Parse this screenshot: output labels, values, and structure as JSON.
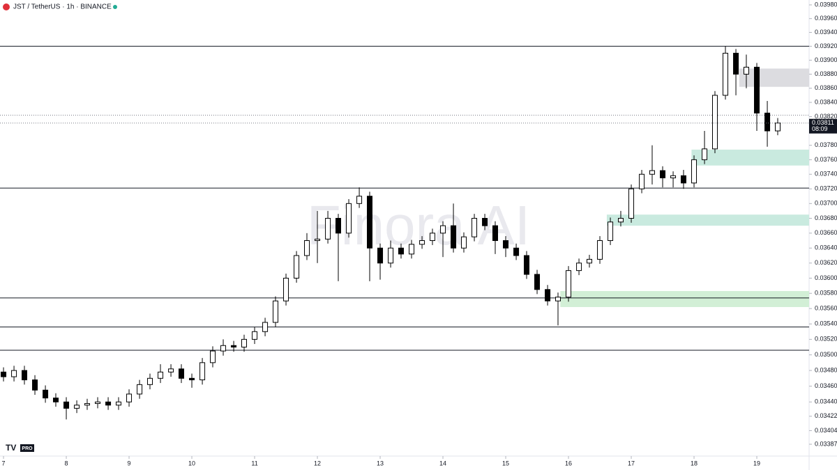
{
  "chart_data": {
    "type": "candlestick",
    "title": "JST / TetherUS · 1h · BINANCE",
    "watermark": "Finora AI",
    "badge": "PRO",
    "log_scale": true,
    "up_color": "#ffffff",
    "down_color": "#000000",
    "x": [
      7,
      7.167,
      7.333,
      7.5,
      7.667,
      7.833,
      8,
      8.167,
      8.333,
      8.5,
      8.667,
      8.833,
      9,
      9.167,
      9.333,
      9.5,
      9.667,
      9.833,
      10,
      10.167,
      10.333,
      10.5,
      10.667,
      10.833,
      11,
      11.167,
      11.333,
      11.5,
      11.667,
      11.833,
      12,
      12.167,
      12.333,
      12.5,
      12.667,
      12.833,
      13,
      13.167,
      13.333,
      13.5,
      13.667,
      13.833,
      14,
      14.167,
      14.333,
      14.5,
      14.667,
      14.833,
      15,
      15.167,
      15.333,
      15.5,
      15.667,
      15.833,
      16,
      16.167,
      16.333,
      16.5,
      16.667,
      16.833,
      17,
      17.167,
      17.333,
      17.5,
      17.667,
      17.833,
      18,
      18.167,
      18.333,
      18.5,
      18.667,
      18.833,
      19,
      19.167,
      19.333
    ],
    "open": [
      0.03478,
      0.03472,
      0.0348,
      0.03468,
      0.03455,
      0.03445,
      0.0344,
      0.03432,
      0.03436,
      0.03438,
      0.0344,
      0.03436,
      0.0344,
      0.0345,
      0.03462,
      0.0347,
      0.03478,
      0.03482,
      0.0347,
      0.03468,
      0.0349,
      0.03505,
      0.03512,
      0.0351,
      0.0352,
      0.0353,
      0.03542,
      0.0357,
      0.036,
      0.0363,
      0.0365,
      0.03652,
      0.0368,
      0.0366,
      0.037,
      0.0371,
      0.0364,
      0.0362,
      0.0364,
      0.03632,
      0.03645,
      0.0365,
      0.0366,
      0.0367,
      0.0364,
      0.03655,
      0.0368,
      0.0367,
      0.0365,
      0.0364,
      0.0363,
      0.03605,
      0.03585,
      0.0357,
      0.03575,
      0.0361,
      0.0362,
      0.03625,
      0.0365,
      0.03675,
      0.0368,
      0.0372,
      0.0374,
      0.03745,
      0.03735,
      0.03738,
      0.03728,
      0.0376,
      0.03775,
      0.0385,
      0.0391,
      0.0388,
      0.0389,
      0.03825,
      0.038
    ],
    "high": [
      0.03484,
      0.03486,
      0.03486,
      0.03474,
      0.03461,
      0.03451,
      0.03446,
      0.03442,
      0.03444,
      0.03446,
      0.03446,
      0.03446,
      0.03456,
      0.03468,
      0.03476,
      0.03488,
      0.03488,
      0.03488,
      0.03476,
      0.03496,
      0.03511,
      0.0352,
      0.03518,
      0.03526,
      0.03536,
      0.03548,
      0.03576,
      0.03606,
      0.03636,
      0.0366,
      0.0369,
      0.0369,
      0.03686,
      0.03706,
      0.03722,
      0.03716,
      0.03646,
      0.0365,
      0.03646,
      0.03651,
      0.03656,
      0.03666,
      0.03676,
      0.037,
      0.03661,
      0.03686,
      0.03686,
      0.03676,
      0.03656,
      0.03646,
      0.03636,
      0.03611,
      0.03591,
      0.03581,
      0.03616,
      0.03626,
      0.03631,
      0.03656,
      0.03681,
      0.0369,
      0.03726,
      0.03746,
      0.0378,
      0.03751,
      0.03744,
      0.03746,
      0.03766,
      0.038,
      0.03856,
      0.0392,
      0.03916,
      0.03908,
      0.03896,
      0.03842,
      0.03818
    ],
    "low": [
      0.03466,
      0.03466,
      0.03462,
      0.03449,
      0.03439,
      0.03434,
      0.03418,
      0.03426,
      0.0343,
      0.03432,
      0.0343,
      0.0343,
      0.03434,
      0.03444,
      0.03456,
      0.03464,
      0.03472,
      0.03464,
      0.03458,
      0.03462,
      0.03484,
      0.03499,
      0.03504,
      0.03504,
      0.03514,
      0.03524,
      0.03536,
      0.03564,
      0.03594,
      0.03624,
      0.0362,
      0.03646,
      0.03596,
      0.03654,
      0.03694,
      0.03596,
      0.03598,
      0.03614,
      0.03626,
      0.03626,
      0.03639,
      0.03644,
      0.03628,
      0.03634,
      0.03634,
      0.03649,
      0.03664,
      0.03632,
      0.03628,
      0.03624,
      0.03599,
      0.03579,
      0.03564,
      0.03538,
      0.03569,
      0.03604,
      0.03614,
      0.03619,
      0.03644,
      0.03669,
      0.03674,
      0.03714,
      0.03726,
      0.03722,
      0.03722,
      0.0372,
      0.03722,
      0.03754,
      0.03769,
      0.03844,
      0.0385,
      0.0386,
      0.038,
      0.03778,
      0.03794
    ],
    "close": [
      0.03472,
      0.0348,
      0.03468,
      0.03455,
      0.03445,
      0.0344,
      0.03432,
      0.03436,
      0.03438,
      0.0344,
      0.03436,
      0.0344,
      0.0345,
      0.03462,
      0.0347,
      0.03478,
      0.03482,
      0.0347,
      0.03468,
      0.0349,
      0.03505,
      0.03512,
      0.0351,
      0.0352,
      0.0353,
      0.03542,
      0.0357,
      0.036,
      0.0363,
      0.0365,
      0.03652,
      0.0368,
      0.0366,
      0.037,
      0.0371,
      0.0364,
      0.0362,
      0.0364,
      0.03632,
      0.03645,
      0.0365,
      0.0366,
      0.0367,
      0.0364,
      0.03655,
      0.0368,
      0.0367,
      0.0365,
      0.0364,
      0.0363,
      0.03605,
      0.03585,
      0.0357,
      0.03575,
      0.0361,
      0.0362,
      0.03625,
      0.0365,
      0.03675,
      0.0368,
      0.0372,
      0.0374,
      0.03745,
      0.03735,
      0.03738,
      0.03728,
      0.0376,
      0.03775,
      0.0385,
      0.0391,
      0.0388,
      0.0389,
      0.03825,
      0.038,
      0.03811
    ],
    "xlim": [
      6.944,
      19.833
    ],
    "xticks": [
      7,
      8,
      9,
      10,
      11,
      12,
      13,
      14,
      15,
      16,
      17,
      18,
      19
    ],
    "ylim": [
      0.03387,
      0.0398
    ],
    "yticks": [
      {
        "value": 0.0398,
        "label": "0.03980"
      },
      {
        "value": 0.0396,
        "label": "0.03960"
      },
      {
        "value": 0.0394,
        "label": "0.03940"
      },
      {
        "value": 0.0392,
        "label": "0.03920"
      },
      {
        "value": 0.039,
        "label": "0.03900"
      },
      {
        "value": 0.0388,
        "label": "0.03880"
      },
      {
        "value": 0.0386,
        "label": "0.03860"
      },
      {
        "value": 0.0384,
        "label": "0.03840"
      },
      {
        "value": 0.0382,
        "label": "0.03820"
      },
      {
        "value": 0.0378,
        "label": "0.03780"
      },
      {
        "value": 0.0376,
        "label": "0.03760"
      },
      {
        "value": 0.0374,
        "label": "0.03740"
      },
      {
        "value": 0.0372,
        "label": "0.03720"
      },
      {
        "value": 0.037,
        "label": "0.03700"
      },
      {
        "value": 0.0368,
        "label": "0.03680"
      },
      {
        "value": 0.0366,
        "label": "0.03660"
      },
      {
        "value": 0.0364,
        "label": "0.03640"
      },
      {
        "value": 0.0362,
        "label": "0.03620"
      },
      {
        "value": 0.036,
        "label": "0.03600"
      },
      {
        "value": 0.0358,
        "label": "0.03580"
      },
      {
        "value": 0.0356,
        "label": "0.03560"
      },
      {
        "value": 0.0354,
        "label": "0.03540"
      },
      {
        "value": 0.0352,
        "label": "0.03520"
      },
      {
        "value": 0.035,
        "label": "0.03500"
      },
      {
        "value": 0.0348,
        "label": "0.03480"
      },
      {
        "value": 0.0346,
        "label": "0.03460"
      },
      {
        "value": 0.0344,
        "label": "0.03440"
      },
      0.03422,
      0.03404,
      0.03387
    ],
    "levels": [
      0.0392,
      0.03721,
      0.03574,
      0.03536,
      0.03506
    ],
    "dashed_levels": [
      0.03822
    ],
    "last_price": {
      "value": 0.03811,
      "label": "0.03811",
      "countdown": "08:09"
    },
    "zones": [
      {
        "x_start": 18.72,
        "low": 0.03862,
        "high": 0.03888,
        "color": "#dcdce0"
      },
      {
        "x_start": 17.96,
        "low": 0.03752,
        "high": 0.03774,
        "color": "#c9eadf"
      },
      {
        "x_start": 16.61,
        "low": 0.0367,
        "high": 0.03685,
        "color": "#c9eadf"
      },
      {
        "x_start": 15.87,
        "low": 0.03562,
        "high": 0.03583,
        "color": "#d2efd6"
      }
    ]
  }
}
